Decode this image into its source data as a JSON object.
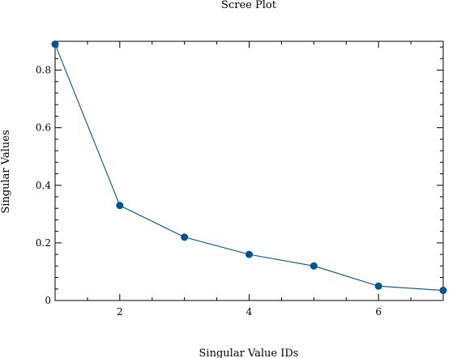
{
  "chart_data": {
    "type": "line",
    "title": "Scree Plot",
    "xlabel": "Singular Value IDs",
    "ylabel": "Singular Values",
    "x": [
      1,
      2,
      3,
      4,
      5,
      6,
      7
    ],
    "series": [
      {
        "values": [
          0.89,
          0.33,
          0.22,
          0.16,
          0.12,
          0.05,
          0.035
        ],
        "color": "#00528a",
        "markers": "filled-circle"
      }
    ],
    "xlim": [
      1,
      7
    ],
    "ylim": [
      0,
      0.9
    ],
    "x_ticks": [
      2,
      4,
      6
    ],
    "x_tick_labels": [
      "2",
      "4",
      "6"
    ],
    "x_minor_step": 0.5,
    "y_ticks": [
      0,
      0.2,
      0.4,
      0.6,
      0.8
    ],
    "y_tick_labels": [
      "0",
      "0.2",
      "0.4",
      "0.6",
      "0.8"
    ],
    "y_minor_step": 0.04,
    "grid": false,
    "legend": "none",
    "colors": {
      "line": "#00528a",
      "marker": "#00528a",
      "axes": "#000000",
      "background": "#ffffff"
    }
  }
}
